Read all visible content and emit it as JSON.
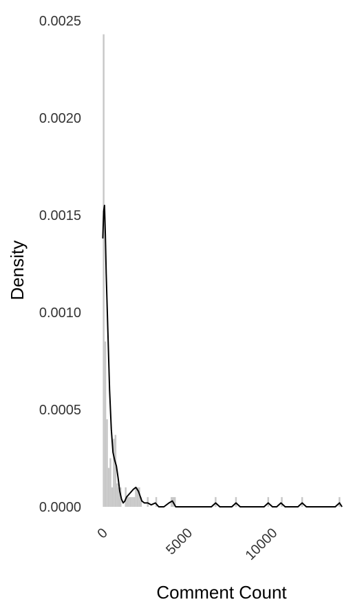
{
  "chart_data": {
    "type": "bar",
    "subtype": "histogram with density curve",
    "xlabel": "Comment Count",
    "ylabel": "Density",
    "xlim": [
      -300,
      14300
    ],
    "ylim": [
      0,
      0.0025
    ],
    "y_ticks": [
      0,
      0.0005,
      0.001,
      0.0015,
      0.002,
      0.0025
    ],
    "y_tick_labels": [
      "0.0000",
      "0.0005",
      "0.0010",
      "0.0015",
      "0.0020",
      "0.0025"
    ],
    "x_ticks": [
      0,
      5000,
      10000
    ],
    "x_tick_labels": [
      "0",
      "5000",
      "10000"
    ],
    "grid": false,
    "legend": "none",
    "colors": {
      "bars": "#c8c8c8",
      "curve": "#000000",
      "text": "#333333"
    },
    "histogram": {
      "bins": [
        {
          "x0": 0,
          "x1": 100,
          "density": 0.00243
        },
        {
          "x0": 100,
          "x1": 200,
          "density": 0.00085
        },
        {
          "x0": 200,
          "x1": 300,
          "density": 0.00045
        },
        {
          "x0": 300,
          "x1": 400,
          "density": 0.0002
        },
        {
          "x0": 400,
          "x1": 500,
          "density": 0.00025
        },
        {
          "x0": 500,
          "x1": 600,
          "density": 0.0001
        },
        {
          "x0": 600,
          "x1": 700,
          "density": 0.00035
        },
        {
          "x0": 700,
          "x1": 800,
          "density": 0.00037
        },
        {
          "x0": 800,
          "x1": 900,
          "density": 0.00012
        },
        {
          "x0": 900,
          "x1": 1000,
          "density": 0.0001
        },
        {
          "x0": 1000,
          "x1": 1100,
          "density": 0.0001
        },
        {
          "x0": 1100,
          "x1": 1200,
          "density": 0.0
        },
        {
          "x0": 1200,
          "x1": 1300,
          "density": 0.0
        },
        {
          "x0": 1300,
          "x1": 1400,
          "density": 0.0001
        },
        {
          "x0": 1400,
          "x1": 1500,
          "density": 5e-05
        },
        {
          "x0": 1500,
          "x1": 1600,
          "density": 5e-05
        },
        {
          "x0": 1600,
          "x1": 1700,
          "density": 5e-05
        },
        {
          "x0": 1700,
          "x1": 1800,
          "density": 5e-05
        },
        {
          "x0": 1800,
          "x1": 1900,
          "density": 5e-05
        },
        {
          "x0": 1900,
          "x1": 2000,
          "density": 0.0001
        },
        {
          "x0": 2000,
          "x1": 2100,
          "density": 0.0001
        },
        {
          "x0": 2100,
          "x1": 2200,
          "density": 0.0001
        },
        {
          "x0": 2200,
          "x1": 2300,
          "density": 5e-05
        },
        {
          "x0": 2600,
          "x1": 2700,
          "density": 5e-05
        },
        {
          "x0": 3100,
          "x1": 3200,
          "density": 5e-05
        },
        {
          "x0": 4000,
          "x1": 4300,
          "density": 5e-05
        },
        {
          "x0": 6600,
          "x1": 6700,
          "density": 5e-05
        },
        {
          "x0": 7800,
          "x1": 7900,
          "density": 5e-05
        },
        {
          "x0": 9700,
          "x1": 9800,
          "density": 5e-05
        },
        {
          "x0": 10500,
          "x1": 10600,
          "density": 5e-05
        },
        {
          "x0": 11700,
          "x1": 11800,
          "density": 5e-05
        },
        {
          "x0": 13900,
          "x1": 14000,
          "density": 5e-05
        }
      ]
    },
    "density_curve": [
      [
        0,
        0.00138
      ],
      [
        50,
        0.00152
      ],
      [
        100,
        0.00155
      ],
      [
        150,
        0.0014
      ],
      [
        200,
        0.0012
      ],
      [
        300,
        0.0009
      ],
      [
        400,
        0.0006
      ],
      [
        500,
        0.0004
      ],
      [
        600,
        0.00028
      ],
      [
        700,
        0.00024
      ],
      [
        800,
        0.00021
      ],
      [
        900,
        0.00015
      ],
      [
        1000,
        8e-05
      ],
      [
        1100,
        4e-05
      ],
      [
        1200,
        2e-05
      ],
      [
        1300,
        3e-05
      ],
      [
        1400,
        5e-05
      ],
      [
        1600,
        7e-05
      ],
      [
        1800,
        9e-05
      ],
      [
        1950,
        0.0001
      ],
      [
        2100,
        8e-05
      ],
      [
        2300,
        3e-05
      ],
      [
        2450,
        2e-05
      ],
      [
        2650,
        2e-05
      ],
      [
        2850,
        1e-05
      ],
      [
        3100,
        2e-05
      ],
      [
        3300,
        0.0
      ],
      [
        3600,
        0.0
      ],
      [
        3900,
        2e-05
      ],
      [
        4100,
        3e-05
      ],
      [
        4300,
        0.0
      ],
      [
        6400,
        0.0
      ],
      [
        6650,
        2e-05
      ],
      [
        6900,
        0.0
      ],
      [
        7600,
        0.0
      ],
      [
        7850,
        2e-05
      ],
      [
        8100,
        0.0
      ],
      [
        9500,
        0.0
      ],
      [
        9750,
        2e-05
      ],
      [
        10000,
        0.0
      ],
      [
        10250,
        0.0
      ],
      [
        10500,
        2e-05
      ],
      [
        10750,
        0.0
      ],
      [
        11500,
        0.0
      ],
      [
        11750,
        2e-05
      ],
      [
        12000,
        0.0
      ],
      [
        13700,
        0.0
      ],
      [
        13950,
        2e-05
      ],
      [
        14100,
        0.0
      ]
    ]
  }
}
